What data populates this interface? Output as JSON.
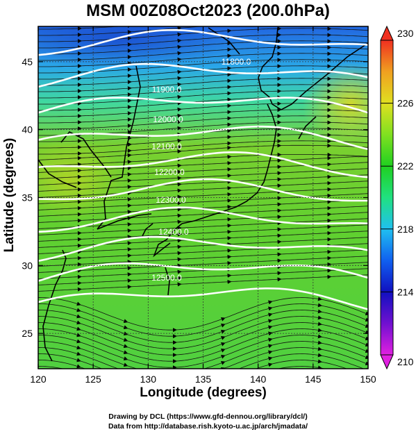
{
  "title": "MSM 00Z08Oct2023 (200.0hPa)",
  "x_axis": {
    "label": "Longitude (degrees)",
    "range": [
      120,
      150
    ],
    "ticks": [
      "120",
      "125",
      "130",
      "135",
      "140",
      "145",
      "150"
    ]
  },
  "y_axis": {
    "label": "Latitude  (degrees)",
    "range": [
      22.4,
      47.6
    ],
    "ticks": [
      "25",
      "30",
      "35",
      "40",
      "45"
    ]
  },
  "colorbar": {
    "range": [
      210,
      230
    ],
    "ticks": [
      "210",
      "214",
      "218",
      "222",
      "226",
      "230"
    ],
    "colors": [
      "#e020e0",
      "#7010d0",
      "#1010c0",
      "#1060f0",
      "#20c0f0",
      "#20e080",
      "#20d020",
      "#80e020",
      "#e0e020",
      "#f0a020",
      "#f03020"
    ]
  },
  "contours": {
    "color": "#ffffff",
    "labels": [
      "11800.0",
      "11900.0",
      "12000.0",
      "12100.0",
      "12200.0",
      "12300.0",
      "12400.0",
      "12500.0"
    ]
  },
  "background_field": {
    "colors": {
      "cold": "#2a6fe0",
      "cool": "#30c8d0",
      "mid": "#40d040",
      "warm": "#d8e020"
    }
  },
  "credits": {
    "line1": "Drawing by DCL (https://www.gfd-dennou.org/library/dcl/)",
    "line2": "Data from http://database.rish.kyoto-u.ac.jp/arch/jmadata/"
  }
}
